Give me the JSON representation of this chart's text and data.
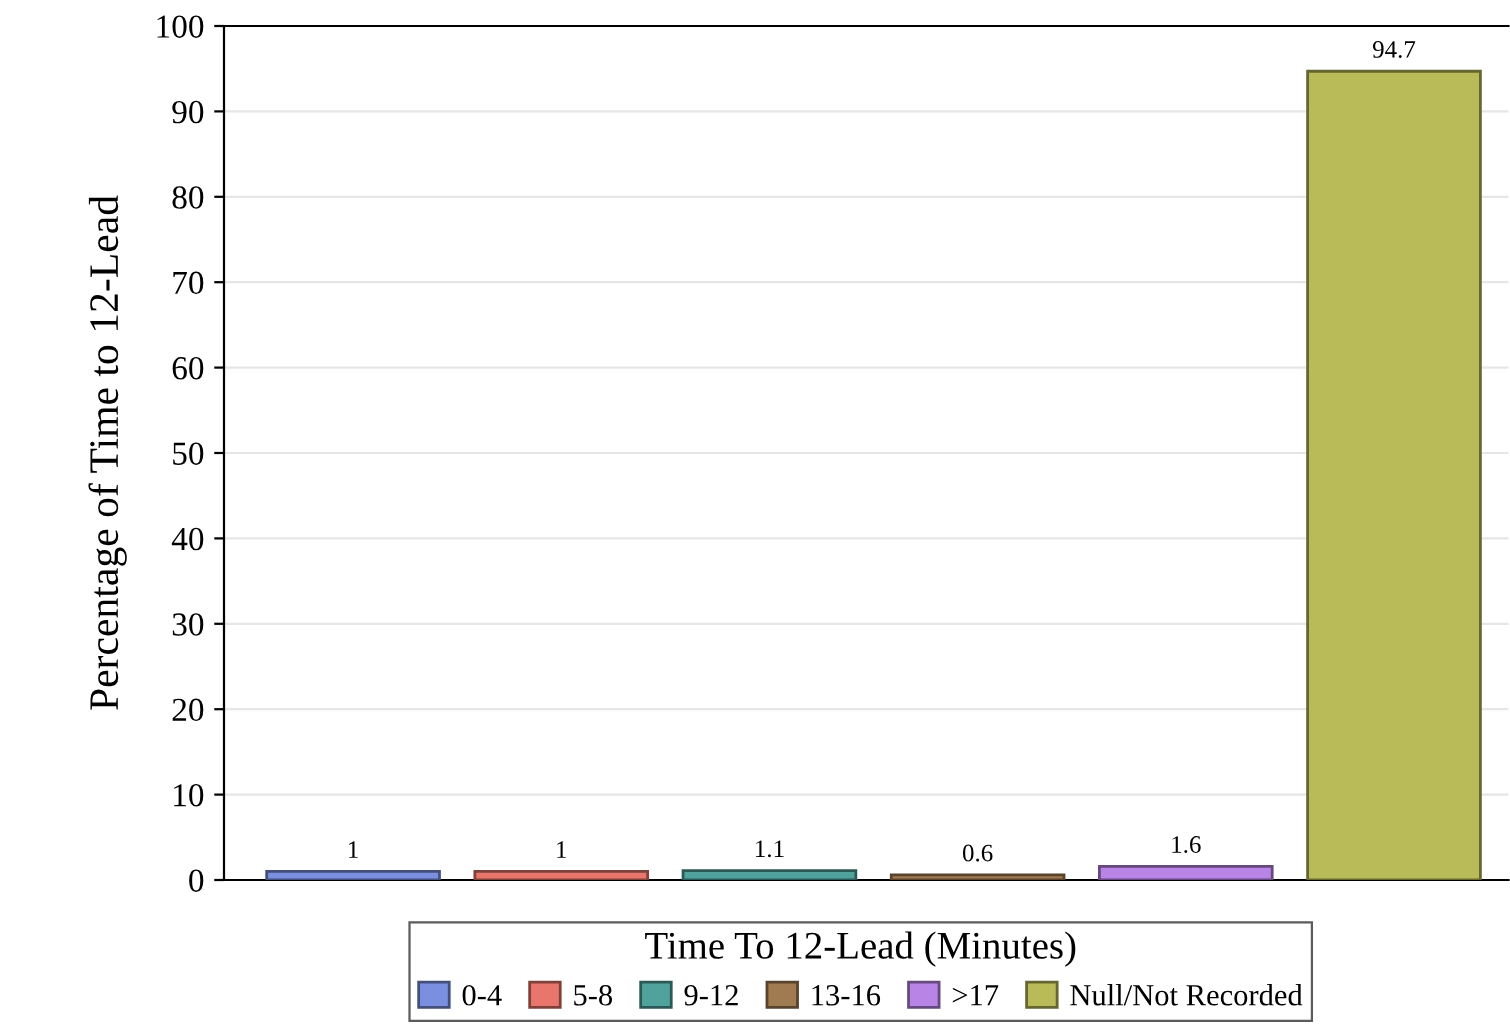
{
  "chart_data": {
    "type": "bar",
    "ylabel": "Percentage of Time to 12-Lead",
    "legend_title": "Time To 12-Lead (Minutes)",
    "categories": [
      null,
      null,
      null,
      null,
      null,
      null
    ],
    "series": [
      {
        "name": "0-4",
        "color": "#7b8fe0",
        "values": [
          1,
          null,
          null,
          null,
          null,
          null
        ]
      },
      {
        "name": "5-8",
        "color": "#e8766c",
        "values": [
          null,
          1,
          null,
          null,
          null,
          null
        ]
      },
      {
        "name": "9-12",
        "color": "#4fa39c",
        "values": [
          null,
          null,
          1.1,
          null,
          null,
          null
        ]
      },
      {
        "name": "13-16",
        "color": "#a07a50",
        "values": [
          null,
          null,
          null,
          0.6,
          null,
          null
        ]
      },
      {
        "name": ">17",
        "color": "#b884e6",
        "values": [
          null,
          null,
          null,
          null,
          1.6,
          null
        ]
      },
      {
        "name": "Null/Not Recorded",
        "color": "#b9ba58",
        "values": [
          null,
          null,
          null,
          null,
          null,
          94.7
        ]
      }
    ],
    "ylim": [
      0,
      100
    ],
    "yticks": [
      0,
      10,
      20,
      30,
      40,
      50,
      60,
      70,
      80,
      90,
      100
    ],
    "grid": "y",
    "legend": "bottom",
    "tick_labels": "y",
    "data_labels": true
  }
}
